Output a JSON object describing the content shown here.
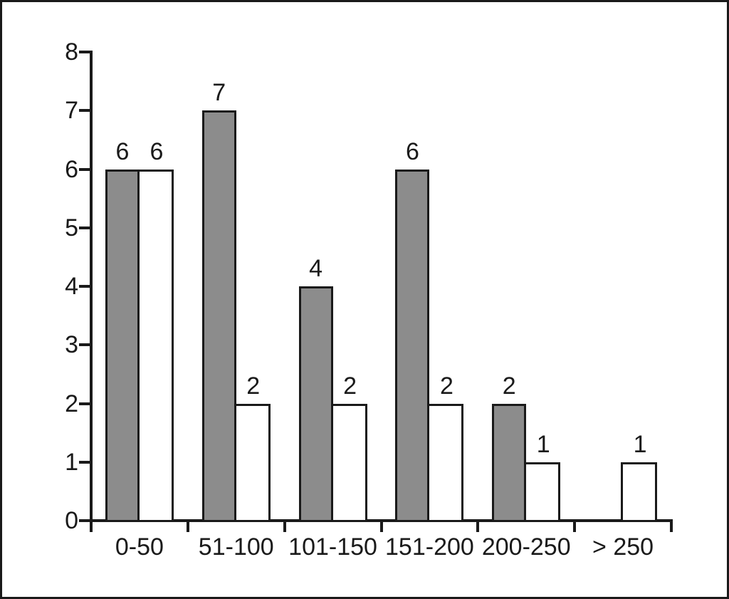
{
  "chart_data": {
    "type": "bar",
    "title": "",
    "xlabel": "",
    "ylabel": "",
    "categories": [
      "0-50",
      "51-100",
      "101-150",
      "151-200",
      "200-250",
      "> 250"
    ],
    "series": [
      {
        "name": "filled-gray",
        "color": "#8c8c8c",
        "values": [
          6,
          7,
          4,
          6,
          2,
          null
        ]
      },
      {
        "name": "open-white",
        "color": "#ffffff",
        "values": [
          6,
          2,
          2,
          2,
          1,
          1
        ]
      }
    ],
    "ylim": [
      0,
      8
    ],
    "yticks": [
      0,
      1,
      2,
      3,
      4,
      5,
      6,
      7,
      8
    ],
    "value_labels_shown": true,
    "grid": false,
    "legend_position": "none",
    "axis_color": "#1a1a1a",
    "bar_border_color": "#1a1a1a",
    "frame_border_color": "#1a1a1a",
    "background_color": "#ffffff"
  }
}
